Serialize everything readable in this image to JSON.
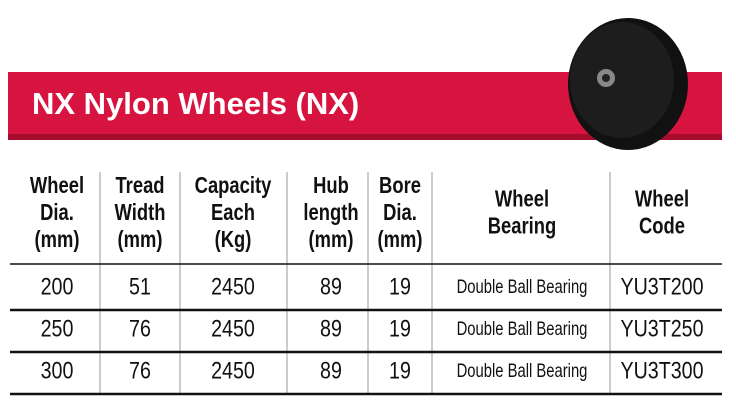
{
  "header": {
    "title": "NX Nylon Wheels  (NX)"
  },
  "table": {
    "columns": [
      [
        "Wheel",
        "Dia.",
        "(mm)"
      ],
      [
        "Tread",
        "Width",
        "(mm)"
      ],
      [
        "Capacity",
        "Each",
        "(Kg)"
      ],
      [
        "Hub",
        "length",
        "(mm)"
      ],
      [
        "Bore",
        "Dia.",
        "(mm)"
      ],
      [
        "Wheel",
        "Bearing"
      ],
      [
        "Wheel",
        "Code"
      ]
    ],
    "rows": [
      [
        "200",
        "51",
        "2450",
        "89",
        "19",
        "Double Ball Bearing",
        "YU3T200"
      ],
      [
        "250",
        "76",
        "2450",
        "89",
        "19",
        "Double Ball Bearing",
        "YU3T250"
      ],
      [
        "300",
        "76",
        "2450",
        "89",
        "19",
        "Double Ball Bearing",
        "YU3T300"
      ]
    ]
  }
}
